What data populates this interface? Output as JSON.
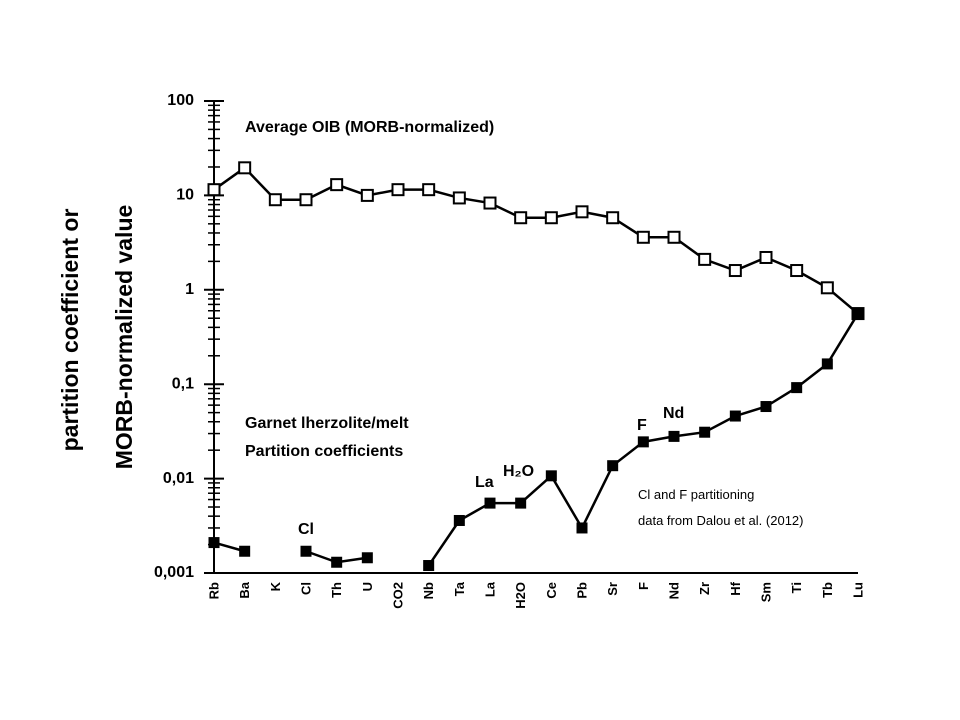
{
  "chart_data": {
    "type": "line",
    "ylabel": [
      "partition coefficient or",
      "MORB-normalized value"
    ],
    "annotations": [
      "Average OIB (MORB-normalized)",
      "Garnet lherzolite/melt",
      "Partition coefficients",
      "Cl",
      "La",
      "H₂O",
      "F",
      "Nd",
      "Cl and F partitioning",
      "data from Dalou et al. (2012)"
    ],
    "categories": [
      "Rb",
      "Ba",
      "K",
      "Cl",
      "Th",
      "U",
      "CO2",
      "Nb",
      "Ta",
      "La",
      "H2O",
      "Ce",
      "Pb",
      "Sr",
      "F",
      "Nd",
      "Zr",
      "Hf",
      "Sm",
      "Ti",
      "Tb",
      "Lu"
    ],
    "series": [
      {
        "color": "#000000",
        "marker": "open-square",
        "values": [
          11.5,
          19.6,
          9,
          9,
          13,
          10,
          11.5,
          11.5,
          9.4,
          8.3,
          5.8,
          5.8,
          6.7,
          5.8,
          3.6,
          3.6,
          2.1,
          1.6,
          2.2,
          1.6,
          1.05,
          0.56
        ]
      },
      {
        "color": "#000000",
        "marker": "filled-square",
        "values": [
          0.0021,
          0.0017,
          null,
          0.0017,
          0.0013,
          0.00145,
          null,
          0.0012,
          0.0036,
          0.0055,
          0.0055,
          0.0107,
          0.003,
          0.0137,
          0.0245,
          0.028,
          0.031,
          0.046,
          0.058,
          0.092,
          0.164,
          0.56
        ]
      }
    ],
    "ylog": true,
    "ylim": [
      0.001,
      100
    ],
    "yticks": [
      {
        "value": 0.001,
        "label": "0,001"
      },
      {
        "value": 0.01,
        "label": "0,01"
      },
      {
        "value": 0.1,
        "label": "0,1"
      },
      1,
      10,
      100
    ],
    "yminorticks": [
      0.002,
      0.003,
      0.004,
      0.005,
      0.006,
      0.007,
      0.008,
      0.009,
      0.02,
      0.03,
      0.04,
      0.05,
      0.06,
      0.07,
      0.08,
      0.09,
      0.2,
      0.3,
      0.4,
      0.5,
      0.6,
      0.7,
      0.8,
      0.9,
      2,
      3,
      4,
      5,
      6,
      7,
      8,
      9,
      20,
      30,
      40,
      50,
      60,
      70,
      80,
      90
    ]
  }
}
